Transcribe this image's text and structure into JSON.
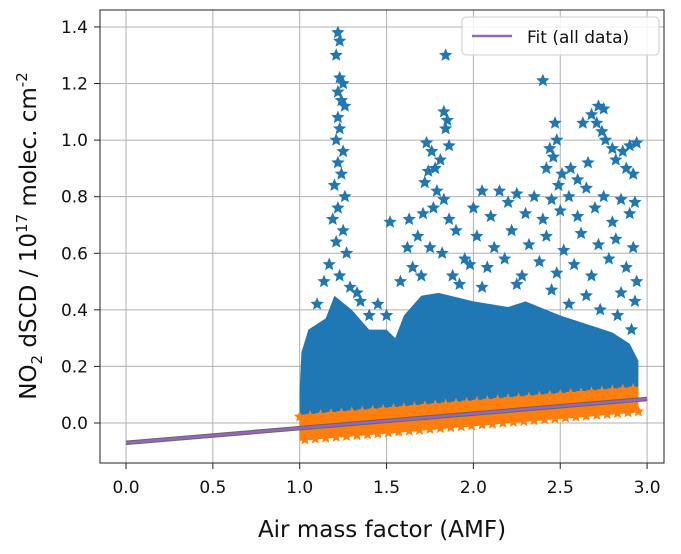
{
  "chart_data": {
    "type": "scatter",
    "xlabel": "Air mass factor (AMF)",
    "ylabel_parts": {
      "a": "NO",
      "sub": "2",
      "b": " dSCD / 10",
      "sup1": "17",
      "c": " molec. cm",
      "sup2": "-2"
    },
    "xlim": [
      -0.15,
      3.1
    ],
    "ylim": [
      -0.15,
      1.46
    ],
    "xticks": [
      "0.0",
      "0.5",
      "1.0",
      "1.5",
      "2.0",
      "2.5",
      "3.0"
    ],
    "yticks": [
      "0.0",
      "0.2",
      "0.4",
      "0.6",
      "0.8",
      "1.0",
      "1.2",
      "1.4"
    ],
    "grid": true,
    "legend": {
      "position": "top-right",
      "entries": [
        {
          "label": "Fit (all data)",
          "color": "#9467bd"
        }
      ]
    },
    "colors": {
      "all_data": "#1f77b4",
      "fit_data": "#ff7f0e",
      "fit": "#9467bd"
    },
    "marker": "star",
    "fit_line": {
      "x": [
        0.0,
        3.0
      ],
      "y": [
        -0.07,
        0.085
      ]
    },
    "dense_region_all_data": {
      "upper": [
        [
          1.0,
          0.12
        ],
        [
          1.01,
          0.25
        ],
        [
          1.05,
          0.33
        ],
        [
          1.15,
          0.37
        ],
        [
          1.2,
          0.45
        ],
        [
          1.3,
          0.4
        ],
        [
          1.4,
          0.33
        ],
        [
          1.5,
          0.33
        ],
        [
          1.55,
          0.3
        ],
        [
          1.6,
          0.38
        ],
        [
          1.7,
          0.45
        ],
        [
          1.8,
          0.46
        ],
        [
          2.0,
          0.43
        ],
        [
          2.2,
          0.41
        ],
        [
          2.3,
          0.43
        ],
        [
          2.5,
          0.38
        ],
        [
          2.6,
          0.36
        ],
        [
          2.8,
          0.32
        ],
        [
          2.9,
          0.28
        ],
        [
          2.95,
          0.22
        ]
      ],
      "lower": [
        [
          2.95,
          0.08
        ],
        [
          1.0,
          -0.03
        ]
      ]
    },
    "band_fit_data": {
      "x_range": [
        1.0,
        2.95
      ],
      "half_width": 0.045
    },
    "series_points": [
      {
        "name": "all data",
        "points": [
          [
            1.22,
            1.38
          ],
          [
            1.23,
            1.35
          ],
          [
            1.21,
            1.3
          ],
          [
            1.23,
            1.22
          ],
          [
            1.25,
            1.2
          ],
          [
            1.22,
            1.17
          ],
          [
            1.24,
            1.14
          ],
          [
            1.26,
            1.12
          ],
          [
            1.22,
            1.08
          ],
          [
            1.23,
            1.04
          ],
          [
            1.21,
            1.0
          ],
          [
            1.25,
            0.96
          ],
          [
            1.22,
            0.92
          ],
          [
            1.24,
            0.88
          ],
          [
            1.2,
            0.84
          ],
          [
            1.26,
            0.8
          ],
          [
            1.22,
            0.76
          ],
          [
            1.19,
            0.72
          ],
          [
            1.25,
            0.68
          ],
          [
            1.21,
            0.64
          ],
          [
            1.27,
            0.6
          ],
          [
            1.17,
            0.56
          ],
          [
            1.23,
            0.52
          ],
          [
            1.29,
            0.48
          ],
          [
            1.14,
            0.5
          ],
          [
            1.33,
            0.46
          ],
          [
            1.84,
            1.3
          ],
          [
            1.83,
            1.1
          ],
          [
            1.85,
            1.07
          ],
          [
            1.84,
            1.04
          ],
          [
            1.86,
            0.98
          ],
          [
            1.73,
            0.99
          ],
          [
            1.76,
            0.96
          ],
          [
            1.81,
            0.93
          ],
          [
            1.74,
            0.89
          ],
          [
            1.78,
            0.9
          ],
          [
            1.72,
            0.85
          ],
          [
            1.79,
            0.82
          ],
          [
            1.83,
            0.79
          ],
          [
            1.77,
            0.76
          ],
          [
            1.71,
            0.74
          ],
          [
            1.86,
            0.72
          ],
          [
            1.9,
            0.68
          ],
          [
            1.63,
            0.72
          ],
          [
            1.68,
            0.66
          ],
          [
            1.75,
            0.62
          ],
          [
            1.82,
            0.6
          ],
          [
            1.95,
            0.58
          ],
          [
            2.4,
            1.21
          ],
          [
            2.47,
            1.06
          ],
          [
            2.48,
            1.0
          ],
          [
            2.46,
            0.94
          ],
          [
            2.44,
            0.97
          ],
          [
            2.42,
            0.9
          ],
          [
            2.51,
            0.88
          ],
          [
            2.49,
            0.84
          ],
          [
            2.68,
            1.09
          ],
          [
            2.72,
            1.12
          ],
          [
            2.75,
            1.11
          ],
          [
            2.71,
            1.06
          ],
          [
            2.74,
            1.03
          ],
          [
            2.76,
            1.0
          ],
          [
            2.63,
            1.06
          ],
          [
            2.8,
            0.97
          ],
          [
            2.86,
            0.96
          ],
          [
            2.9,
            0.98
          ],
          [
            2.94,
            0.99
          ],
          [
            2.82,
            0.93
          ],
          [
            2.88,
            0.9
          ],
          [
            2.92,
            0.88
          ],
          [
            2.66,
            0.92
          ],
          [
            2.6,
            0.86
          ],
          [
            2.56,
            0.9
          ],
          [
            2.05,
            0.82
          ],
          [
            2.15,
            0.82
          ],
          [
            2.25,
            0.81
          ],
          [
            2.35,
            0.8
          ],
          [
            2.45,
            0.79
          ],
          [
            2.55,
            0.8
          ],
          [
            2.65,
            0.83
          ],
          [
            2.75,
            0.8
          ],
          [
            2.85,
            0.79
          ],
          [
            2.93,
            0.78
          ],
          [
            2.0,
            0.76
          ],
          [
            2.1,
            0.73
          ],
          [
            2.2,
            0.78
          ],
          [
            2.3,
            0.74
          ],
          [
            2.4,
            0.72
          ],
          [
            2.5,
            0.75
          ],
          [
            2.6,
            0.73
          ],
          [
            2.7,
            0.76
          ],
          [
            2.8,
            0.71
          ],
          [
            2.9,
            0.74
          ],
          [
            2.02,
            0.66
          ],
          [
            2.12,
            0.62
          ],
          [
            2.22,
            0.68
          ],
          [
            2.32,
            0.63
          ],
          [
            2.42,
            0.66
          ],
          [
            2.52,
            0.61
          ],
          [
            2.62,
            0.67
          ],
          [
            2.72,
            0.63
          ],
          [
            2.82,
            0.65
          ],
          [
            2.92,
            0.62
          ],
          [
            1.98,
            0.56
          ],
          [
            2.08,
            0.55
          ],
          [
            2.18,
            0.58
          ],
          [
            2.28,
            0.52
          ],
          [
            2.38,
            0.57
          ],
          [
            2.48,
            0.53
          ],
          [
            2.58,
            0.56
          ],
          [
            2.68,
            0.52
          ],
          [
            2.78,
            0.58
          ],
          [
            2.88,
            0.55
          ],
          [
            2.94,
            0.5
          ],
          [
            1.58,
            0.5
          ],
          [
            1.65,
            0.55
          ],
          [
            1.7,
            0.52
          ],
          [
            1.88,
            0.52
          ],
          [
            1.92,
            0.49
          ],
          [
            2.05,
            0.48
          ],
          [
            2.25,
            0.49
          ],
          [
            2.45,
            0.47
          ],
          [
            2.65,
            0.45
          ],
          [
            2.85,
            0.46
          ],
          [
            2.93,
            0.43
          ],
          [
            1.52,
            0.71
          ],
          [
            1.62,
            0.62
          ],
          [
            1.1,
            0.42
          ],
          [
            1.35,
            0.43
          ],
          [
            1.4,
            0.38
          ],
          [
            1.45,
            0.42
          ],
          [
            1.5,
            0.38
          ],
          [
            2.73,
            0.4
          ],
          [
            2.55,
            0.42
          ],
          [
            2.83,
            0.38
          ],
          [
            2.91,
            0.33
          ]
        ]
      }
    ]
  }
}
